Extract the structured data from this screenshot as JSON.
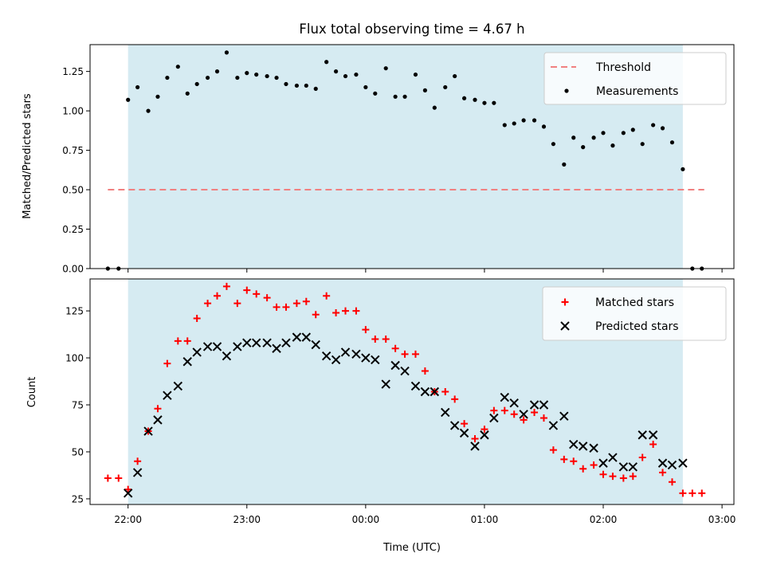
{
  "chart_data": [
    {
      "type": "scatter",
      "title": "Flux total observing time = 4.67 h",
      "ylabel": "Matched/Predicted stars",
      "ylim": [
        0,
        1.42
      ],
      "yticks": [
        "0.00",
        "0.25",
        "0.50",
        "0.75",
        "1.00",
        "1.25"
      ],
      "ytick_values": [
        0,
        0.25,
        0.5,
        0.75,
        1.0,
        1.25
      ],
      "xlim_hours": [
        21.68,
        27.1
      ],
      "shaded_span_hours": [
        22.0,
        26.67
      ],
      "shade_color": "#add8e6",
      "legend_position": "upper right",
      "threshold": {
        "name": "Threshold",
        "value": 0.5,
        "x_range_hours": [
          21.83,
          26.85
        ],
        "color": "#f08080"
      },
      "series": [
        {
          "name": "Measurements",
          "marker": "dot",
          "color": "#000000",
          "points": [
            [
              21.83,
              0.0
            ],
            [
              21.92,
              0.0
            ],
            [
              22.0,
              1.07
            ],
            [
              22.08,
              1.15
            ],
            [
              22.17,
              1.0
            ],
            [
              22.25,
              1.09
            ],
            [
              22.33,
              1.21
            ],
            [
              22.42,
              1.28
            ],
            [
              22.5,
              1.11
            ],
            [
              22.58,
              1.17
            ],
            [
              22.67,
              1.21
            ],
            [
              22.75,
              1.25
            ],
            [
              22.83,
              1.37
            ],
            [
              22.92,
              1.21
            ],
            [
              23.0,
              1.24
            ],
            [
              23.08,
              1.23
            ],
            [
              23.17,
              1.22
            ],
            [
              23.25,
              1.21
            ],
            [
              23.33,
              1.17
            ],
            [
              23.42,
              1.16
            ],
            [
              23.5,
              1.16
            ],
            [
              23.58,
              1.14
            ],
            [
              23.67,
              1.31
            ],
            [
              23.75,
              1.25
            ],
            [
              23.83,
              1.22
            ],
            [
              23.92,
              1.23
            ],
            [
              24.0,
              1.15
            ],
            [
              24.08,
              1.11
            ],
            [
              24.17,
              1.27
            ],
            [
              24.25,
              1.09
            ],
            [
              24.33,
              1.09
            ],
            [
              24.42,
              1.23
            ],
            [
              24.5,
              1.13
            ],
            [
              24.58,
              1.02
            ],
            [
              24.67,
              1.15
            ],
            [
              24.75,
              1.22
            ],
            [
              24.83,
              1.08
            ],
            [
              24.92,
              1.07
            ],
            [
              25.0,
              1.05
            ],
            [
              25.08,
              1.05
            ],
            [
              25.17,
              0.91
            ],
            [
              25.25,
              0.92
            ],
            [
              25.33,
              0.94
            ],
            [
              25.42,
              0.94
            ],
            [
              25.5,
              0.9
            ],
            [
              25.58,
              0.79
            ],
            [
              25.67,
              0.66
            ],
            [
              25.75,
              0.83
            ],
            [
              25.83,
              0.77
            ],
            [
              25.92,
              0.83
            ],
            [
              26.0,
              0.86
            ],
            [
              26.08,
              0.78
            ],
            [
              26.17,
              0.86
            ],
            [
              26.25,
              0.88
            ],
            [
              26.33,
              0.79
            ],
            [
              26.42,
              0.91
            ],
            [
              26.5,
              0.89
            ],
            [
              26.58,
              0.8
            ],
            [
              26.67,
              0.63
            ],
            [
              26.75,
              0.0
            ],
            [
              26.83,
              0.0
            ]
          ]
        }
      ]
    },
    {
      "type": "scatter",
      "xlabel": "Time (UTC)",
      "ylabel": "Count",
      "ylim": [
        22,
        142
      ],
      "yticks": [
        "25",
        "50",
        "75",
        "100",
        "125"
      ],
      "ytick_values": [
        25,
        50,
        75,
        100,
        125
      ],
      "xlim_hours": [
        21.68,
        27.1
      ],
      "xticks": [
        "22:00",
        "23:00",
        "00:00",
        "01:00",
        "02:00",
        "03:00"
      ],
      "xtick_hours": [
        22,
        23,
        24,
        25,
        26,
        27
      ],
      "shaded_span_hours": [
        22.0,
        26.67
      ],
      "shade_color": "#add8e6",
      "legend_position": "upper right",
      "series": [
        {
          "name": "Matched stars",
          "marker": "plus",
          "color": "#ff0000",
          "points": [
            [
              21.83,
              36
            ],
            [
              21.92,
              36
            ],
            [
              22.0,
              30
            ],
            [
              22.08,
              45
            ],
            [
              22.17,
              61
            ],
            [
              22.25,
              73
            ],
            [
              22.33,
              97
            ],
            [
              22.42,
              109
            ],
            [
              22.5,
              109
            ],
            [
              22.58,
              121
            ],
            [
              22.67,
              129
            ],
            [
              22.75,
              133
            ],
            [
              22.83,
              138
            ],
            [
              22.92,
              129
            ],
            [
              23.0,
              136
            ],
            [
              23.08,
              134
            ],
            [
              23.17,
              132
            ],
            [
              23.25,
              127
            ],
            [
              23.33,
              127
            ],
            [
              23.42,
              129
            ],
            [
              23.5,
              130
            ],
            [
              23.58,
              123
            ],
            [
              23.67,
              133
            ],
            [
              23.75,
              124
            ],
            [
              23.83,
              125
            ],
            [
              23.92,
              125
            ],
            [
              24.0,
              115
            ],
            [
              24.08,
              110
            ],
            [
              24.17,
              110
            ],
            [
              24.25,
              105
            ],
            [
              24.33,
              102
            ],
            [
              24.42,
              102
            ],
            [
              24.5,
              93
            ],
            [
              24.58,
              82
            ],
            [
              24.67,
              82
            ],
            [
              24.75,
              78
            ],
            [
              24.83,
              65
            ],
            [
              24.92,
              57
            ],
            [
              25.0,
              62
            ],
            [
              25.08,
              72
            ],
            [
              25.17,
              72
            ],
            [
              25.25,
              70
            ],
            [
              25.33,
              67
            ],
            [
              25.42,
              71
            ],
            [
              25.5,
              68
            ],
            [
              25.58,
              51
            ],
            [
              25.67,
              46
            ],
            [
              25.75,
              45
            ],
            [
              25.83,
              41
            ],
            [
              25.92,
              43
            ],
            [
              26.0,
              38
            ],
            [
              26.08,
              37
            ],
            [
              26.17,
              36
            ],
            [
              26.25,
              37
            ],
            [
              26.33,
              47
            ],
            [
              26.42,
              54
            ],
            [
              26.5,
              39
            ],
            [
              26.58,
              34
            ],
            [
              26.67,
              28
            ],
            [
              26.75,
              28
            ],
            [
              26.83,
              28
            ]
          ]
        },
        {
          "name": "Predicted stars",
          "marker": "x",
          "color": "#000000",
          "points": [
            [
              22.0,
              28
            ],
            [
              22.08,
              39
            ],
            [
              22.17,
              61
            ],
            [
              22.25,
              67
            ],
            [
              22.33,
              80
            ],
            [
              22.42,
              85
            ],
            [
              22.5,
              98
            ],
            [
              22.58,
              103
            ],
            [
              22.67,
              106
            ],
            [
              22.75,
              106
            ],
            [
              22.83,
              101
            ],
            [
              22.92,
              106
            ],
            [
              23.0,
              108
            ],
            [
              23.08,
              108
            ],
            [
              23.17,
              108
            ],
            [
              23.25,
              105
            ],
            [
              23.33,
              108
            ],
            [
              23.42,
              111
            ],
            [
              23.5,
              111
            ],
            [
              23.58,
              107
            ],
            [
              23.67,
              101
            ],
            [
              23.75,
              99
            ],
            [
              23.83,
              103
            ],
            [
              23.92,
              102
            ],
            [
              24.0,
              100
            ],
            [
              24.08,
              99
            ],
            [
              24.17,
              86
            ],
            [
              24.25,
              96
            ],
            [
              24.33,
              93
            ],
            [
              24.42,
              85
            ],
            [
              24.5,
              82
            ],
            [
              24.58,
              82
            ],
            [
              24.67,
              71
            ],
            [
              24.75,
              64
            ],
            [
              24.83,
              60
            ],
            [
              24.92,
              53
            ],
            [
              25.0,
              59
            ],
            [
              25.08,
              68
            ],
            [
              25.17,
              79
            ],
            [
              25.25,
              76
            ],
            [
              25.33,
              70
            ],
            [
              25.42,
              75
            ],
            [
              25.5,
              75
            ],
            [
              25.58,
              64
            ],
            [
              25.67,
              69
            ],
            [
              25.75,
              54
            ],
            [
              25.83,
              53
            ],
            [
              25.92,
              52
            ],
            [
              26.0,
              44
            ],
            [
              26.08,
              47
            ],
            [
              26.17,
              42
            ],
            [
              26.25,
              42
            ],
            [
              26.33,
              59
            ],
            [
              26.42,
              59
            ],
            [
              26.5,
              44
            ],
            [
              26.58,
              43
            ],
            [
              26.67,
              44
            ]
          ]
        }
      ]
    }
  ]
}
